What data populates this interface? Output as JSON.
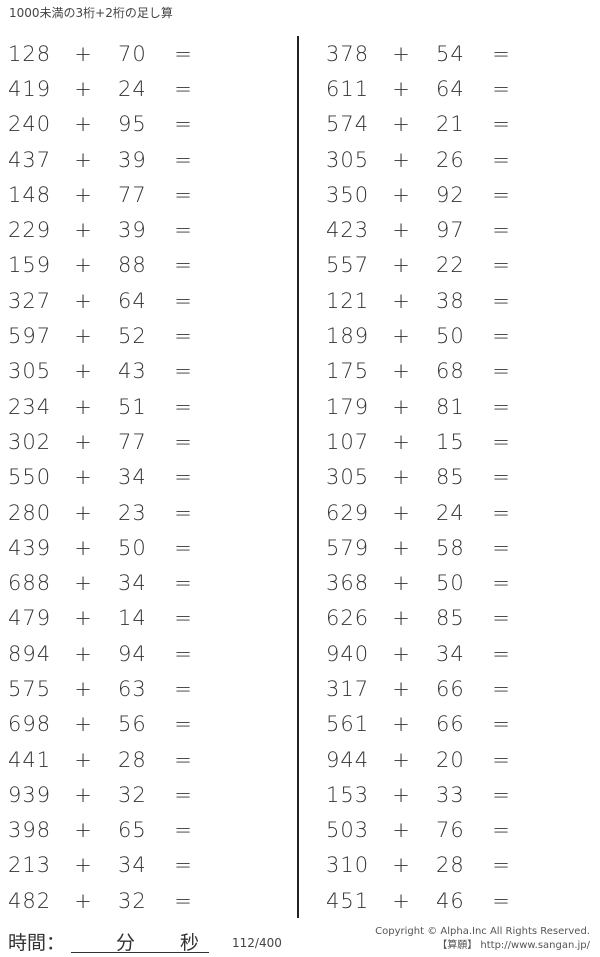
{
  "title": "1000未満の3桁+2桁の足し算",
  "operator": "+",
  "equals": "=",
  "left_problems": [
    [
      "128",
      "70"
    ],
    [
      "419",
      "24"
    ],
    [
      "240",
      "95"
    ],
    [
      "437",
      "39"
    ],
    [
      "148",
      "77"
    ],
    [
      "229",
      "39"
    ],
    [
      "159",
      "88"
    ],
    [
      "327",
      "64"
    ],
    [
      "597",
      "52"
    ],
    [
      "305",
      "43"
    ],
    [
      "234",
      "51"
    ],
    [
      "302",
      "77"
    ],
    [
      "550",
      "34"
    ],
    [
      "280",
      "23"
    ],
    [
      "439",
      "50"
    ],
    [
      "688",
      "34"
    ],
    [
      "479",
      "14"
    ],
    [
      "894",
      "94"
    ],
    [
      "575",
      "63"
    ],
    [
      "698",
      "56"
    ],
    [
      "441",
      "28"
    ],
    [
      "939",
      "32"
    ],
    [
      "398",
      "65"
    ],
    [
      "213",
      "34"
    ],
    [
      "482",
      "32"
    ]
  ],
  "right_problems": [
    [
      "378",
      "54"
    ],
    [
      "611",
      "64"
    ],
    [
      "574",
      "21"
    ],
    [
      "305",
      "26"
    ],
    [
      "350",
      "92"
    ],
    [
      "423",
      "97"
    ],
    [
      "557",
      "22"
    ],
    [
      "121",
      "38"
    ],
    [
      "189",
      "50"
    ],
    [
      "175",
      "68"
    ],
    [
      "179",
      "81"
    ],
    [
      "107",
      "15"
    ],
    [
      "305",
      "85"
    ],
    [
      "629",
      "24"
    ],
    [
      "579",
      "58"
    ],
    [
      "368",
      "50"
    ],
    [
      "626",
      "85"
    ],
    [
      "940",
      "34"
    ],
    [
      "317",
      "66"
    ],
    [
      "561",
      "66"
    ],
    [
      "944",
      "20"
    ],
    [
      "153",
      "33"
    ],
    [
      "503",
      "76"
    ],
    [
      "310",
      "28"
    ],
    [
      "451",
      "46"
    ]
  ],
  "footer": {
    "time_label": "時間：",
    "minutes": "分",
    "seconds": "秒",
    "page": "112/400",
    "copyright": "Copyright © Alpha.Inc All Rights Reserved.",
    "site": "【算願】 http://www.sangan.jp/"
  }
}
